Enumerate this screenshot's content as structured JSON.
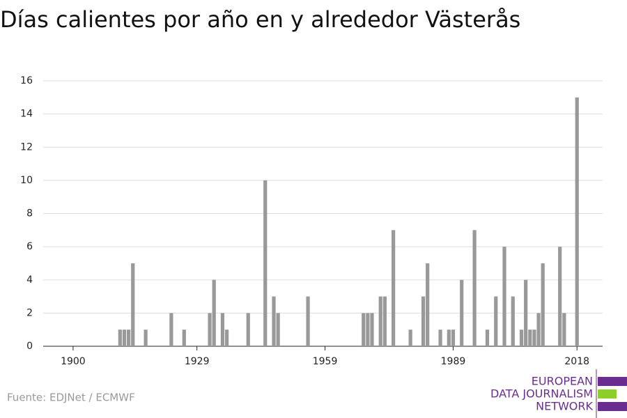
{
  "chart_data": {
    "type": "bar",
    "title": "Días calientes por año en y alrededor Västerås",
    "source": "Fuente: EDJNet / ECMWF",
    "logo": [
      "EUROPEAN",
      "DATA JOURNALISM",
      "NETWORK"
    ],
    "x": [
      1911,
      1912,
      1913,
      1914,
      1917,
      1923,
      1926,
      1932,
      1933,
      1935,
      1936,
      1941,
      1945,
      1947,
      1948,
      1955,
      1968,
      1969,
      1970,
      1972,
      1973,
      1975,
      1979,
      1982,
      1983,
      1986,
      1988,
      1989,
      1991,
      1994,
      1997,
      1999,
      2001,
      2003,
      2005,
      2006,
      2007,
      2008,
      2009,
      2010,
      2014,
      2015,
      2018
    ],
    "values": [
      1,
      1,
      1,
      5,
      1,
      2,
      1,
      2,
      4,
      2,
      1,
      2,
      10,
      3,
      2,
      3,
      2,
      2,
      2,
      3,
      3,
      7,
      1,
      3,
      5,
      1,
      1,
      1,
      4,
      7,
      1,
      3,
      6,
      3,
      1,
      4,
      1,
      1,
      2,
      5,
      6,
      2,
      15
    ],
    "color": "#999999",
    "xlim": [
      1893,
      2024
    ],
    "xticks": [
      1900,
      1929,
      1959,
      1989,
      2018
    ],
    "ylim": [
      0,
      16
    ],
    "yticks": [
      0,
      2,
      4,
      6,
      8,
      10,
      12,
      14,
      16
    ],
    "grid": true
  }
}
